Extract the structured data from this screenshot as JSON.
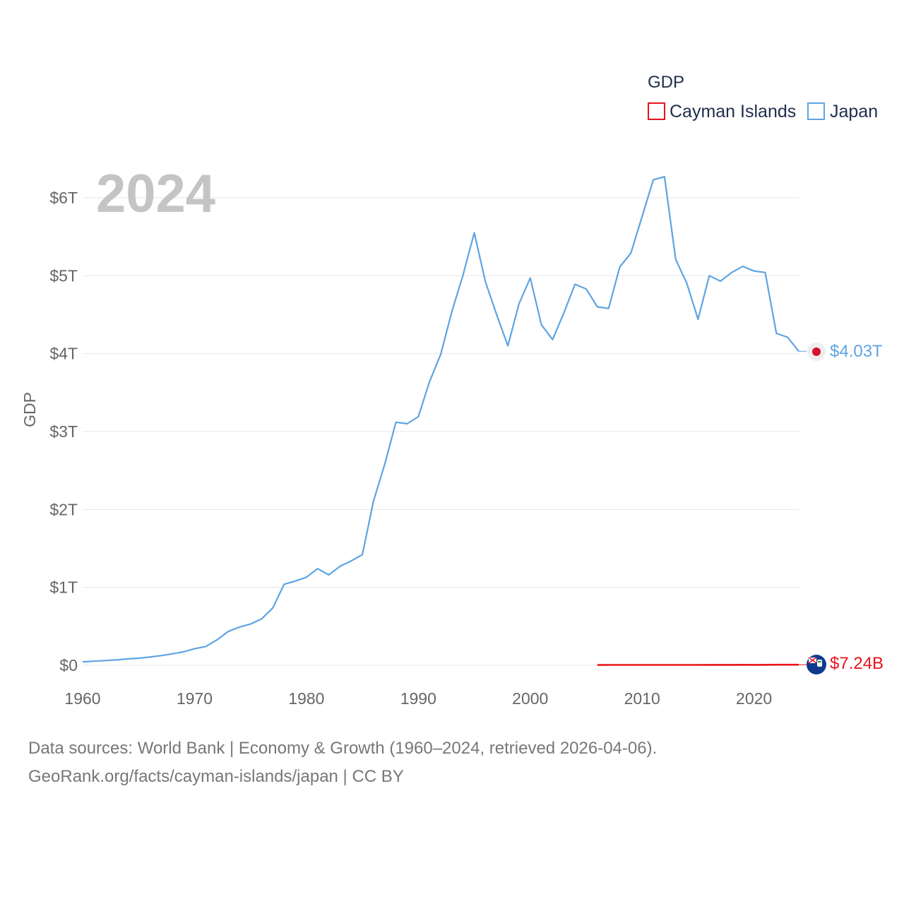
{
  "chart_data": {
    "type": "line",
    "title": "GDP",
    "year_label": "2024",
    "ylabel": "GDP",
    "xlim": [
      1960,
      2024
    ],
    "ylim": [
      0,
      6500000000000
    ],
    "x_ticks": [
      1960,
      1970,
      1980,
      1990,
      2000,
      2010,
      2020
    ],
    "y_ticks": [
      {
        "value": 0,
        "label": "$0"
      },
      {
        "value": 1000000000000,
        "label": "$1T"
      },
      {
        "value": 2000000000000,
        "label": "$2T"
      },
      {
        "value": 3000000000000,
        "label": "$3T"
      },
      {
        "value": 4000000000000,
        "label": "$4T"
      },
      {
        "value": 5000000000000,
        "label": "$5T"
      },
      {
        "value": 6000000000000,
        "label": "$6T"
      }
    ],
    "grid": true,
    "legend_title": "GDP",
    "legend_position": "top-right",
    "series": [
      {
        "name": "Cayman Islands",
        "color": "#e8141c",
        "end_label": "$7.24B",
        "x": [
          2006,
          2007,
          2008,
          2009,
          2010,
          2011,
          2012,
          2013,
          2014,
          2015,
          2016,
          2017,
          2018,
          2019,
          2020,
          2021,
          2022,
          2023,
          2024
        ],
        "values": [
          3800000000,
          4100000000,
          4300000000,
          4100000000,
          4100000000,
          4200000000,
          4300000000,
          4400000000,
          4600000000,
          4900000000,
          5100000000,
          5400000000,
          5800000000,
          6100000000,
          5800000000,
          6300000000,
          6800000000,
          7100000000,
          7240000000
        ]
      },
      {
        "name": "Japan",
        "color": "#5ea4e2",
        "end_label": "$4.03T",
        "x": [
          1960,
          1961,
          1962,
          1963,
          1964,
          1965,
          1966,
          1967,
          1968,
          1969,
          1970,
          1971,
          1972,
          1973,
          1974,
          1975,
          1976,
          1977,
          1978,
          1979,
          1980,
          1981,
          1982,
          1983,
          1984,
          1985,
          1986,
          1987,
          1988,
          1989,
          1990,
          1991,
          1992,
          1993,
          1994,
          1995,
          1996,
          1997,
          1998,
          1999,
          2000,
          2001,
          2002,
          2003,
          2004,
          2005,
          2006,
          2007,
          2008,
          2009,
          2010,
          2011,
          2012,
          2013,
          2014,
          2015,
          2016,
          2017,
          2018,
          2019,
          2020,
          2021,
          2022,
          2023,
          2024
        ],
        "values": [
          44000000000,
          53000000000,
          61000000000,
          69000000000,
          82000000000,
          91000000000,
          106000000000,
          124000000000,
          147000000000,
          172000000000,
          212000000000,
          241000000000,
          325000000000,
          433000000000,
          489000000000,
          529000000000,
          596000000000,
          736000000000,
          1040000000000,
          1080000000000,
          1130000000000,
          1240000000000,
          1160000000000,
          1270000000000,
          1340000000000,
          1420000000000,
          2110000000000,
          2580000000000,
          3120000000000,
          3100000000000,
          3190000000000,
          3640000000000,
          3990000000000,
          4540000000000,
          5010000000000,
          5550000000000,
          4920000000000,
          4500000000000,
          4100000000000,
          4640000000000,
          4970000000000,
          4370000000000,
          4180000000000,
          4520000000000,
          4890000000000,
          4830000000000,
          4600000000000,
          4580000000000,
          5110000000000,
          5290000000000,
          5760000000000,
          6230000000000,
          6270000000000,
          5210000000000,
          4900000000000,
          4440000000000,
          5000000000000,
          4930000000000,
          5040000000000,
          5120000000000,
          5060000000000,
          5040000000000,
          4260000000000,
          4210000000000,
          4030000000000
        ]
      }
    ]
  },
  "footer": {
    "line1": "Data sources: World Bank | Economy & Growth (1960–2024, retrieved 2026-04-06).",
    "line2": "GeoRank.org/facts/cayman-islands/japan | CC BY"
  }
}
